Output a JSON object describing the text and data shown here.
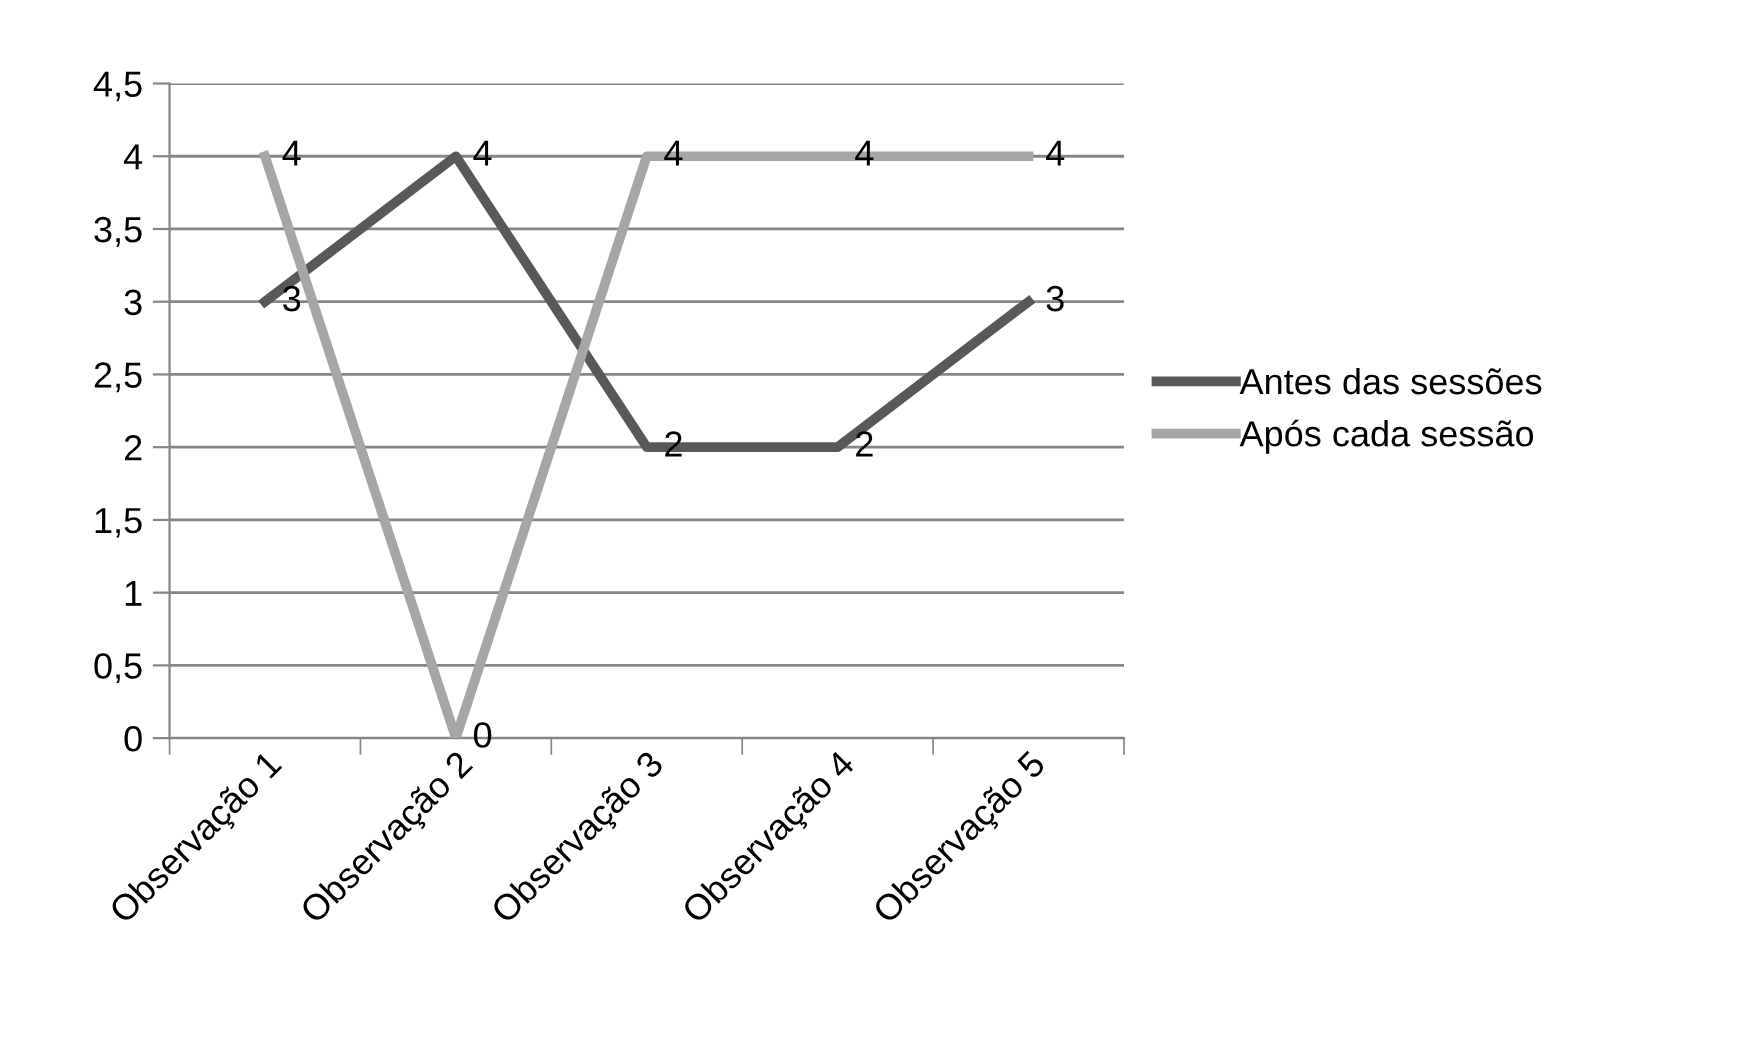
{
  "chart_data": {
    "type": "line",
    "categories": [
      "Observação 1",
      "Observação 2",
      "Observação 3",
      "Observação 4",
      "Observação 5"
    ],
    "series": [
      {
        "name": "Antes das sessões",
        "color": "#595959",
        "values": [
          3,
          4,
          2,
          2,
          3
        ]
      },
      {
        "name": "Após cada sessão",
        "color": "#a6a6a6",
        "values": [
          4,
          0,
          4,
          4,
          4
        ]
      }
    ],
    "ylim": [
      0,
      4.5
    ],
    "yticks": [
      0,
      {
        "value": 0.5,
        "label": "0,5"
      },
      1,
      {
        "value": 1.5,
        "label": "1,5"
      },
      2,
      {
        "value": 2.5,
        "label": "2,5"
      },
      3,
      {
        "value": 3.5,
        "label": "3,5"
      },
      4,
      {
        "value": 4.5,
        "label": "4,5"
      }
    ],
    "grid": "y",
    "legend": "right",
    "data_labels": true,
    "marker": "none",
    "line_style": "solid"
  }
}
